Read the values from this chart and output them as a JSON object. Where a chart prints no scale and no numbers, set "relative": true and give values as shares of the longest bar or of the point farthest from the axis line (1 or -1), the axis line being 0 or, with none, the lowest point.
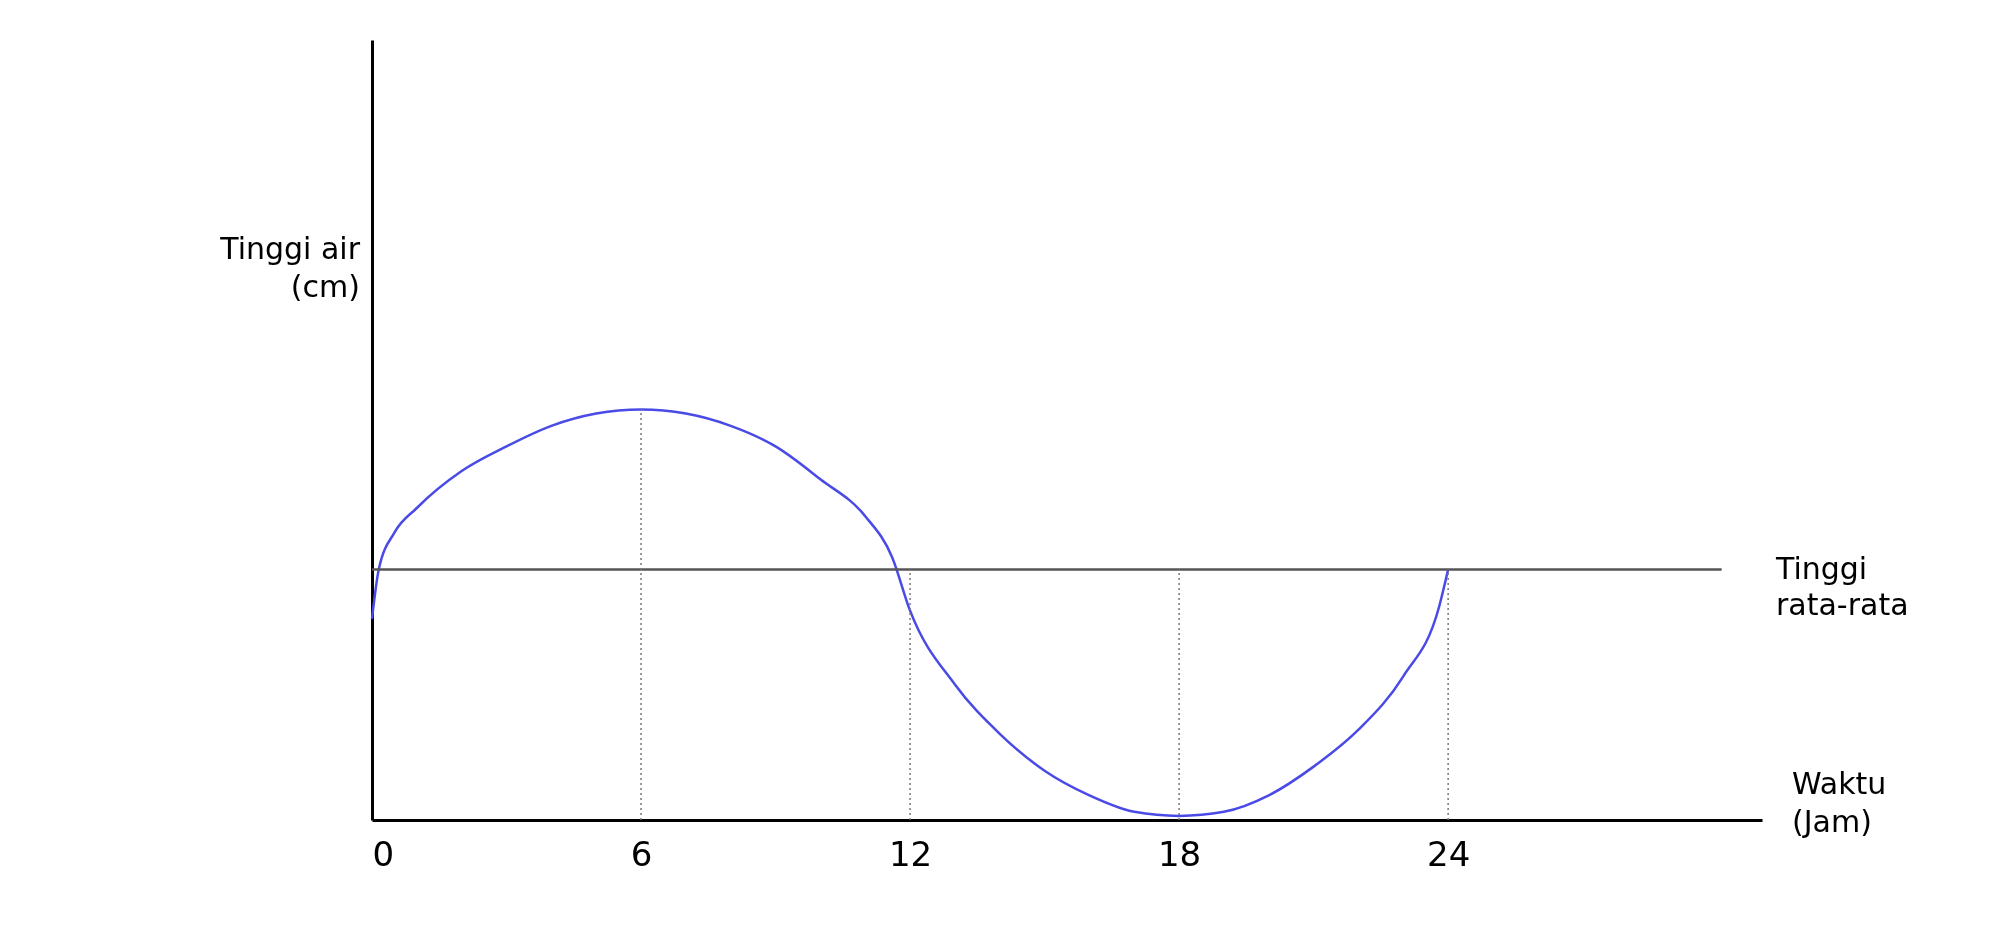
{
  "chart_data": {
    "type": "line",
    "relative": true,
    "xlabel": "Waktu\n(Jam)",
    "ylabel": "Tinggi air\n(cm)",
    "xlim": [
      0,
      31
    ],
    "xticks": [
      0,
      6,
      12,
      18,
      24
    ],
    "grid": false,
    "marker": "none",
    "line_style": "solid",
    "series": [
      {
        "color": "#4a4ae6",
        "x": [
          0,
          0.15,
          0.5,
          1,
          2,
          3,
          4,
          5,
          6,
          7,
          8,
          9,
          10,
          11,
          11.6,
          12,
          13,
          14,
          15,
          16,
          17,
          18,
          19,
          20,
          21,
          22,
          23,
          23.8,
          24
        ],
        "values": [
          0.49,
          0.61,
          0.7,
          0.76,
          0.85,
          0.91,
          0.96,
          0.99,
          1.0,
          0.99,
          0.96,
          0.91,
          0.83,
          0.74,
          0.64,
          0.51,
          0.33,
          0.21,
          0.12,
          0.06,
          0.02,
          0.01,
          0.02,
          0.06,
          0.13,
          0.22,
          0.35,
          0.52,
          0.61
        ]
      }
    ],
    "ref_lines": [
      {
        "axis": "y",
        "value": 0.61,
        "label": "Tinggi\nrata-rata",
        "color": "#555555",
        "line_style": "solid"
      },
      {
        "axis": "x",
        "value": 6,
        "color": "#777777",
        "line_style": "dotted"
      },
      {
        "axis": "x",
        "value": 12,
        "color": "#777777",
        "line_style": "dotted"
      },
      {
        "axis": "x",
        "value": 18,
        "color": "#777777",
        "line_style": "dotted"
      },
      {
        "axis": "x",
        "value": 24,
        "color": "#777777",
        "line_style": "dotted"
      }
    ]
  }
}
